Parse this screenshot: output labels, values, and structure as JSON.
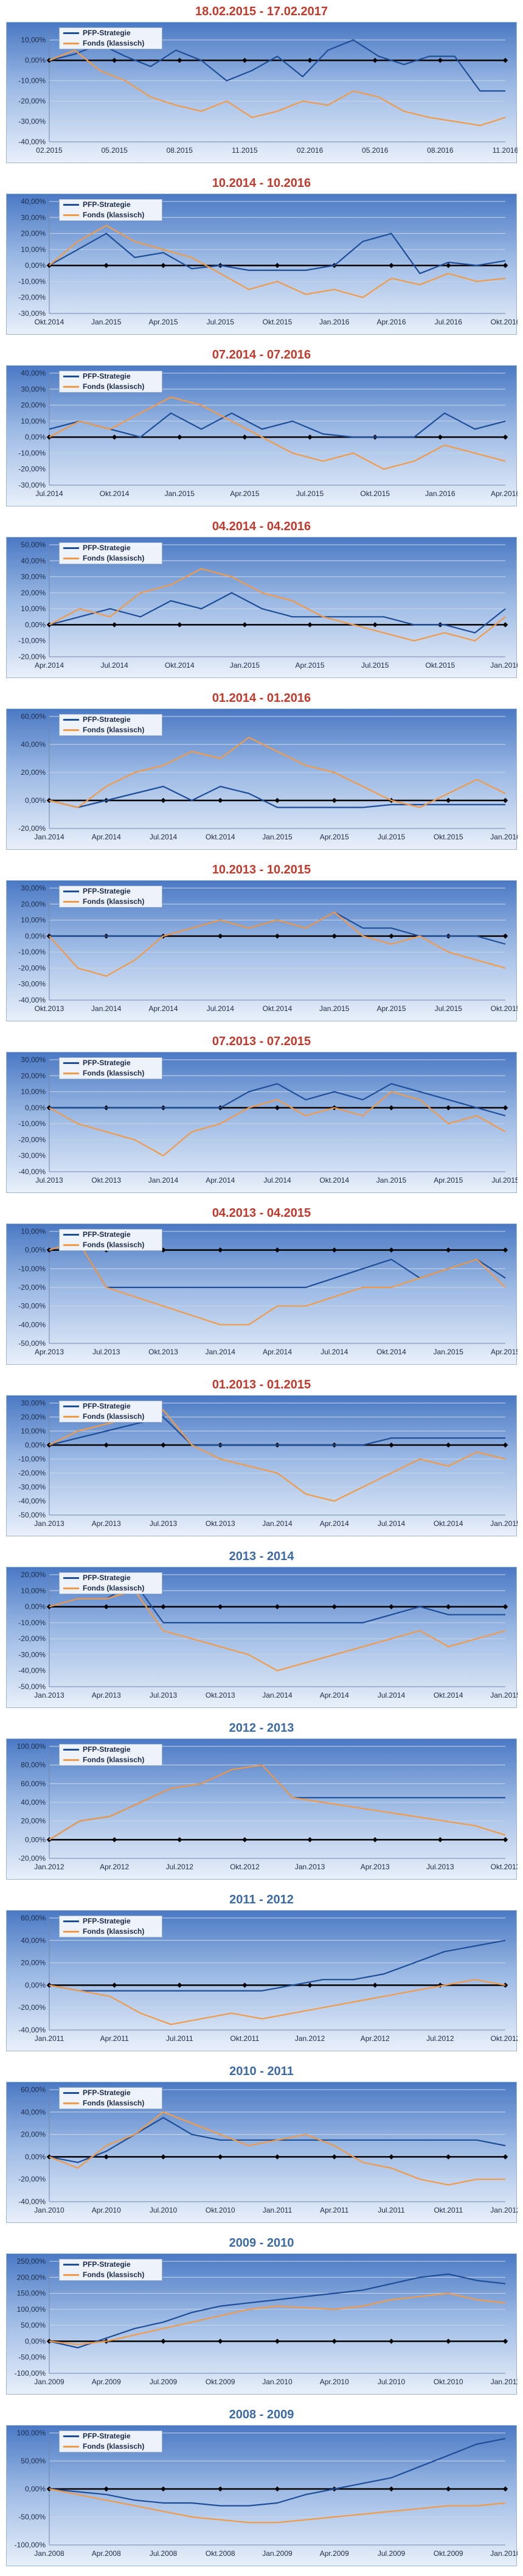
{
  "colors": {
    "strategy": "#1f4e99",
    "fonds": "#f09a4a",
    "zero": "#000000",
    "title_red": "#c0392b",
    "title_blue": "#3b6aa5"
  },
  "legend": {
    "strategy": "PFP-Strategie",
    "fonds": "Fonds (klassisch)"
  },
  "chart_data": [
    {
      "type": "line",
      "title": "18.02.2015 - 17.02.2017",
      "title_color": "red",
      "yticks": [
        "10,00%",
        "0,00%",
        "-10,00%",
        "-20,00%",
        "-30,00%",
        "-40,00%"
      ],
      "ylim": [
        -40,
        15
      ],
      "xticks": [
        "02.2015",
        "05.2015",
        "08.2015",
        "11.2015",
        "02.2016",
        "05.2016",
        "08.2016",
        "11.2016"
      ],
      "series": [
        {
          "name": "PFP-Strategie",
          "values": [
            0,
            3,
            8,
            2,
            -3,
            5,
            0,
            -10,
            -5,
            2,
            -8,
            5,
            10,
            2,
            -2,
            2,
            2,
            -15,
            -15
          ]
        },
        {
          "name": "Fonds (klassisch)",
          "values": [
            0,
            5,
            -5,
            -10,
            -18,
            -22,
            -25,
            -20,
            -28,
            -25,
            -20,
            -22,
            -15,
            -18,
            -25,
            -28,
            -30,
            -32,
            -28
          ]
        }
      ]
    },
    {
      "type": "line",
      "title": "10.2014 - 10.2016",
      "title_color": "red",
      "yticks": [
        "40,00%",
        "30,00%",
        "20,00%",
        "10,00%",
        "0,00%",
        "-10,00%",
        "-20,00%",
        "-30,00%"
      ],
      "ylim": [
        -30,
        40
      ],
      "xticks": [
        "Okt.2014",
        "Jan.2015",
        "Apr.2015",
        "Jul.2015",
        "Okt.2015",
        "Jan.2016",
        "Apr.2016",
        "Jul.2016",
        "Okt.2016"
      ],
      "series": [
        {
          "name": "PFP-Strategie",
          "values": [
            0,
            10,
            20,
            5,
            8,
            -2,
            0,
            -3,
            -3,
            -3,
            0,
            15,
            20,
            -5,
            2,
            0,
            3
          ]
        },
        {
          "name": "Fonds (klassisch)",
          "values": [
            0,
            15,
            25,
            15,
            10,
            5,
            -5,
            -15,
            -10,
            -18,
            -15,
            -20,
            -8,
            -12,
            -5,
            -10,
            -8
          ]
        }
      ]
    },
    {
      "type": "line",
      "title": "07.2014 - 07.2016",
      "title_color": "red",
      "yticks": [
        "40,00%",
        "30,00%",
        "20,00%",
        "10,00%",
        "0,00%",
        "-10,00%",
        "-20,00%",
        "-30,00%"
      ],
      "ylim": [
        -30,
        40
      ],
      "xticks": [
        "Jul.2014",
        "Okt.2014",
        "Jan.2015",
        "Apr.2015",
        "Jul.2015",
        "Okt.2015",
        "Jan.2016",
        "Apr.2016"
      ],
      "series": [
        {
          "name": "PFP-Strategie",
          "values": [
            5,
            10,
            5,
            0,
            15,
            5,
            15,
            5,
            10,
            2,
            0,
            0,
            0,
            15,
            5,
            10
          ]
        },
        {
          "name": "Fonds (klassisch)",
          "values": [
            0,
            10,
            5,
            15,
            25,
            20,
            10,
            0,
            -10,
            -15,
            -10,
            -20,
            -15,
            -5,
            -10,
            -15
          ]
        }
      ]
    },
    {
      "type": "line",
      "title": "04.2014 - 04.2016",
      "title_color": "red",
      "yticks": [
        "50,00%",
        "40,00%",
        "30,00%",
        "20,00%",
        "10,00%",
        "0,00%",
        "-10,00%",
        "-20,00%"
      ],
      "ylim": [
        -20,
        50
      ],
      "xticks": [
        "Apr.2014",
        "Jul.2014",
        "Okt.2014",
        "Jan.2015",
        "Apr.2015",
        "Jul.2015",
        "Okt.2015",
        "Jan.2016"
      ],
      "series": [
        {
          "name": "PFP-Strategie",
          "values": [
            0,
            5,
            10,
            5,
            15,
            10,
            20,
            10,
            5,
            5,
            5,
            5,
            0,
            0,
            -5,
            10
          ]
        },
        {
          "name": "Fonds (klassisch)",
          "values": [
            0,
            10,
            5,
            20,
            25,
            35,
            30,
            20,
            15,
            5,
            0,
            -5,
            -10,
            -5,
            -10,
            5
          ]
        }
      ]
    },
    {
      "type": "line",
      "title": "01.2014 - 01.2016",
      "title_color": "red",
      "yticks": [
        "60,00%",
        "40,00%",
        "20,00%",
        "0,00%",
        "-20,00%"
      ],
      "ylim": [
        -20,
        60
      ],
      "xticks": [
        "Jan.2014",
        "Apr.2014",
        "Jul.2014",
        "Okt.2014",
        "Jan.2015",
        "Apr.2015",
        "Jul.2015",
        "Okt.2015",
        "Jan.2016"
      ],
      "series": [
        {
          "name": "PFP-Strategie",
          "values": [
            0,
            -5,
            0,
            5,
            10,
            0,
            10,
            5,
            -5,
            -5,
            -5,
            -5,
            -3,
            -3,
            -3,
            -3,
            -3
          ]
        },
        {
          "name": "Fonds (klassisch)",
          "values": [
            0,
            -5,
            10,
            20,
            25,
            35,
            30,
            45,
            35,
            25,
            20,
            10,
            0,
            -5,
            5,
            15,
            5
          ]
        }
      ]
    },
    {
      "type": "line",
      "title": "10.2013 - 10.2015",
      "title_color": "red",
      "yticks": [
        "30,00%",
        "20,00%",
        "10,00%",
        "0,00%",
        "-10,00%",
        "-20,00%",
        "-30,00%",
        "-40,00%"
      ],
      "ylim": [
        -40,
        30
      ],
      "xticks": [
        "Okt.2013",
        "Jan.2014",
        "Apr.2014",
        "Jul.2014",
        "Okt.2014",
        "Jan.2015",
        "Apr.2015",
        "Jul.2015",
        "Okt.2015"
      ],
      "series": [
        {
          "name": "PFP-Strategie",
          "values": [
            0,
            0,
            0,
            0,
            0,
            5,
            10,
            5,
            10,
            5,
            15,
            5,
            5,
            0,
            0,
            0,
            -5
          ]
        },
        {
          "name": "Fonds (klassisch)",
          "values": [
            0,
            -20,
            -25,
            -15,
            0,
            5,
            10,
            5,
            10,
            5,
            15,
            0,
            -5,
            0,
            -10,
            -15,
            -20
          ]
        }
      ]
    },
    {
      "type": "line",
      "title": "07.2013 - 07.2015",
      "title_color": "red",
      "yticks": [
        "30,00%",
        "20,00%",
        "10,00%",
        "0,00%",
        "-10,00%",
        "-20,00%",
        "-30,00%",
        "-40,00%"
      ],
      "ylim": [
        -40,
        30
      ],
      "xticks": [
        "Jul.2013",
        "Okt.2013",
        "Jan.2014",
        "Apr.2014",
        "Jul.2014",
        "Okt.2014",
        "Jan.2015",
        "Apr.2015",
        "Jul.2015"
      ],
      "series": [
        {
          "name": "PFP-Strategie",
          "values": [
            0,
            0,
            0,
            0,
            0,
            0,
            0,
            10,
            15,
            5,
            10,
            5,
            15,
            10,
            5,
            0,
            -5
          ]
        },
        {
          "name": "Fonds (klassisch)",
          "values": [
            0,
            -10,
            -15,
            -20,
            -30,
            -15,
            -10,
            0,
            5,
            -5,
            0,
            -5,
            10,
            5,
            -10,
            -5,
            -15
          ]
        }
      ]
    },
    {
      "type": "line",
      "title": "04.2013 - 04.2015",
      "title_color": "red",
      "yticks": [
        "10,00%",
        "0,00%",
        "-10,00%",
        "-20,00%",
        "-30,00%",
        "-40,00%",
        "-50,00%"
      ],
      "ylim": [
        -50,
        10
      ],
      "xticks": [
        "Apr.2013",
        "Jul.2013",
        "Okt.2013",
        "Jan.2014",
        "Apr.2014",
        "Jul.2014",
        "Okt.2014",
        "Jan.2015",
        "Apr.2015"
      ],
      "series": [
        {
          "name": "PFP-Strategie",
          "values": [
            0,
            5,
            -20,
            -20,
            -20,
            -20,
            -20,
            -20,
            -20,
            -20,
            -15,
            -10,
            -5,
            -15,
            -10,
            -5,
            -15
          ]
        },
        {
          "name": "Fonds (klassisch)",
          "values": [
            0,
            5,
            -20,
            -25,
            -30,
            -35,
            -40,
            -40,
            -30,
            -30,
            -25,
            -20,
            -20,
            -15,
            -10,
            -5,
            -20
          ]
        }
      ]
    },
    {
      "type": "line",
      "title": "01.2013 - 01.2015",
      "title_color": "red",
      "yticks": [
        "30,00%",
        "20,00%",
        "10,00%",
        "0,00%",
        "-10,00%",
        "-20,00%",
        "-30,00%",
        "-40,00%",
        "-50,00%"
      ],
      "ylim": [
        -50,
        30
      ],
      "xticks": [
        "Jan.2013",
        "Apr.2013",
        "Jul.2013",
        "Okt.2013",
        "Jan.2014",
        "Apr.2014",
        "Jul.2014",
        "Okt.2014",
        "Jan.2015"
      ],
      "series": [
        {
          "name": "PFP-Strategie",
          "values": [
            0,
            5,
            10,
            15,
            20,
            0,
            0,
            0,
            0,
            0,
            0,
            0,
            5,
            5,
            5,
            5,
            5
          ]
        },
        {
          "name": "Fonds (klassisch)",
          "values": [
            0,
            10,
            15,
            20,
            25,
            0,
            -10,
            -15,
            -20,
            -35,
            -40,
            -30,
            -20,
            -10,
            -15,
            -5,
            -10
          ]
        }
      ]
    },
    {
      "type": "line",
      "title": "2013 - 2014",
      "title_color": "blue",
      "yticks": [
        "20,00%",
        "10,00%",
        "0,00%",
        "-10,00%",
        "-20,00%",
        "-30,00%",
        "-40,00%",
        "-50,00%"
      ],
      "ylim": [
        -50,
        20
      ],
      "xticks": [
        "Jan.2013",
        "Apr.2013",
        "Jul.2013",
        "Okt.2013",
        "Jan.2014",
        "Apr.2014",
        "Jul.2014",
        "Okt.2014",
        "Jan.2015"
      ],
      "series": [
        {
          "name": "PFP-Strategie",
          "values": [
            0,
            5,
            5,
            15,
            -10,
            -10,
            -10,
            -10,
            -10,
            -10,
            -10,
            -10,
            -5,
            0,
            -5,
            -5,
            -5
          ]
        },
        {
          "name": "Fonds (klassisch)",
          "values": [
            0,
            5,
            5,
            10,
            -15,
            -20,
            -25,
            -30,
            -40,
            -35,
            -30,
            -25,
            -20,
            -15,
            -25,
            -20,
            -15
          ]
        }
      ]
    },
    {
      "type": "line",
      "title": "2012 - 2013",
      "title_color": "blue",
      "yticks": [
        "100,00%",
        "80,00%",
        "60,00%",
        "40,00%",
        "20,00%",
        "0,00%",
        "-20,00%"
      ],
      "ylim": [
        -20,
        100
      ],
      "xticks": [
        "Jan.2012",
        "Apr.2012",
        "Jul.2012",
        "Okt.2012",
        "Jan.2013",
        "Apr.2013",
        "Jul.2013",
        "Okt.2013"
      ],
      "series": [
        {
          "name": "PFP-Strategie",
          "values": [
            0,
            20,
            25,
            40,
            55,
            60,
            75,
            80,
            45,
            45,
            45,
            45,
            45,
            45,
            45,
            45
          ]
        },
        {
          "name": "Fonds (klassisch)",
          "values": [
            0,
            20,
            25,
            40,
            55,
            60,
            75,
            80,
            45,
            40,
            35,
            30,
            25,
            20,
            15,
            5
          ]
        }
      ]
    },
    {
      "type": "line",
      "title": "2011 - 2012",
      "title_color": "blue",
      "yticks": [
        "60,00%",
        "40,00%",
        "20,00%",
        "0,00%",
        "-20,00%",
        "-40,00%"
      ],
      "ylim": [
        -40,
        60
      ],
      "xticks": [
        "Jan.2011",
        "Apr.2011",
        "Jul.2011",
        "Okt.2011",
        "Jan.2012",
        "Apr.2012",
        "Jul.2012",
        "Okt.2012"
      ],
      "series": [
        {
          "name": "PFP-Strategie",
          "values": [
            0,
            -5,
            -5,
            -5,
            -5,
            -5,
            -5,
            -5,
            0,
            5,
            5,
            10,
            20,
            30,
            35,
            40
          ]
        },
        {
          "name": "Fonds (klassisch)",
          "values": [
            0,
            -5,
            -10,
            -25,
            -35,
            -30,
            -25,
            -30,
            -25,
            -20,
            -15,
            -10,
            -5,
            0,
            5,
            0
          ]
        }
      ]
    },
    {
      "type": "line",
      "title": "2010 - 2011",
      "title_color": "blue",
      "yticks": [
        "60,00%",
        "40,00%",
        "20,00%",
        "0,00%",
        "-20,00%",
        "-40,00%"
      ],
      "ylim": [
        -40,
        60
      ],
      "xticks": [
        "Jan.2010",
        "Apr.2010",
        "Jul.2010",
        "Okt.2010",
        "Jan.2011",
        "Apr.2011",
        "Jul.2011",
        "Okt.2011",
        "Jan.2012"
      ],
      "series": [
        {
          "name": "PFP-Strategie",
          "values": [
            0,
            -5,
            5,
            20,
            35,
            20,
            15,
            15,
            15,
            15,
            15,
            15,
            15,
            15,
            15,
            15,
            10
          ]
        },
        {
          "name": "Fonds (klassisch)",
          "values": [
            0,
            -10,
            10,
            20,
            40,
            30,
            20,
            10,
            15,
            20,
            10,
            -5,
            -10,
            -20,
            -25,
            -20,
            -20
          ]
        }
      ]
    },
    {
      "type": "line",
      "title": "2009 - 2010",
      "title_color": "blue",
      "yticks": [
        "250,00%",
        "200,00%",
        "150,00%",
        "100,00%",
        "50,00%",
        "0,00%",
        "-50,00%",
        "-100,00%"
      ],
      "ylim": [
        -100,
        250
      ],
      "xticks": [
        "Jan.2009",
        "Apr.2009",
        "Jul.2009",
        "Okt.2009",
        "Jan.2010",
        "Apr.2010",
        "Jul.2010",
        "Okt.2010",
        "Jan.2011"
      ],
      "series": [
        {
          "name": "PFP-Strategie",
          "values": [
            0,
            -20,
            10,
            40,
            60,
            90,
            110,
            120,
            130,
            140,
            150,
            160,
            180,
            200,
            210,
            190,
            180
          ]
        },
        {
          "name": "Fonds (klassisch)",
          "values": [
            0,
            -10,
            0,
            20,
            40,
            60,
            80,
            100,
            110,
            105,
            100,
            110,
            130,
            140,
            150,
            130,
            120
          ]
        }
      ]
    },
    {
      "type": "line",
      "title": "2008 - 2009",
      "title_color": "blue",
      "yticks": [
        "100,00%",
        "50,00%",
        "0,00%",
        "-50,00%",
        "-100,00%"
      ],
      "ylim": [
        -100,
        100
      ],
      "xticks": [
        "Jan.2008",
        "Apr.2008",
        "Jul.2008",
        "Okt.2008",
        "Jan.2009",
        "Apr.2009",
        "Jul.2009",
        "Okt.2009",
        "Jan.2010"
      ],
      "series": [
        {
          "name": "PFP-Strategie",
          "values": [
            0,
            -5,
            -10,
            -20,
            -25,
            -25,
            -30,
            -30,
            -25,
            -10,
            0,
            10,
            20,
            40,
            60,
            80,
            90
          ]
        },
        {
          "name": "Fonds (klassisch)",
          "values": [
            0,
            -10,
            -20,
            -30,
            -40,
            -50,
            -55,
            -60,
            -60,
            -55,
            -50,
            -45,
            -40,
            -35,
            -30,
            -30,
            -25
          ]
        }
      ]
    }
  ]
}
